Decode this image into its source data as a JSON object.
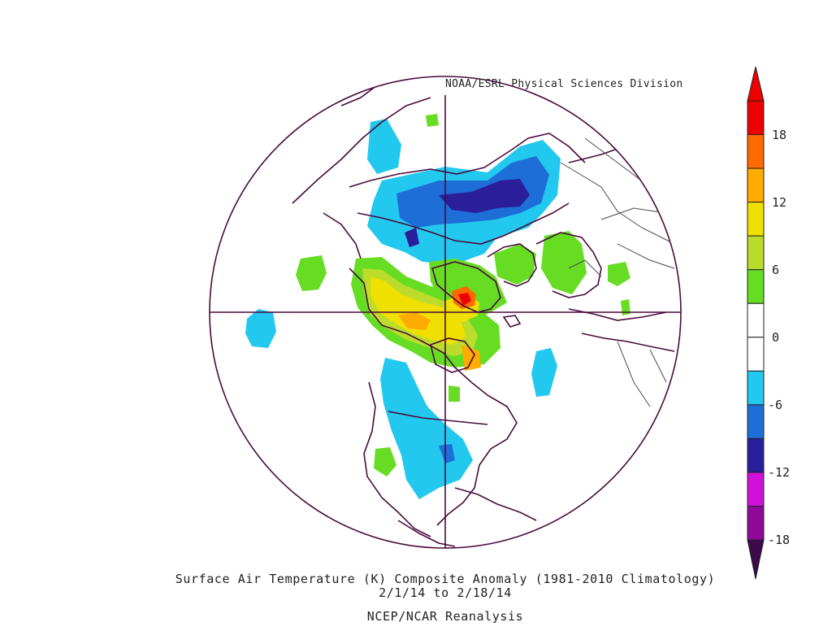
{
  "map": {
    "credit": "NOAA/ESRL Physical Sciences Division",
    "title": "Surface Air Temperature (K) Composite Anomaly (1981-2010 Climatology)",
    "date_range": "2/1/14   to 2/18/14",
    "source": "NCEP/NCAR Reanalysis",
    "projection": "north polar stereographic",
    "colorbar": {
      "labels": [
        "18",
        "12",
        "6",
        "0",
        "-6",
        "-12",
        "-18"
      ],
      "colors": [
        "#ee0000",
        "#ff6a00",
        "#ffab00",
        "#f0e000",
        "#bcdc2c",
        "#66dd22",
        "#ffffff",
        "#ffffff",
        "#22c8ee",
        "#1e6ed8",
        "#2a1e9a",
        "#d012d8",
        "#8e0a96"
      ],
      "over_color": "#ee0000",
      "under_color": "#3c0a4a"
    },
    "anomaly_colors": {
      "light_cyan": "#22c8ee",
      "blue": "#1e6ed8",
      "dark_blue": "#2a1e9a",
      "green": "#66dd22",
      "yellow_green": "#bcdc2c",
      "yellow": "#f0e000",
      "orange": "#ffab00",
      "red": "#ee0000",
      "coast": "#4a0a3c"
    }
  }
}
